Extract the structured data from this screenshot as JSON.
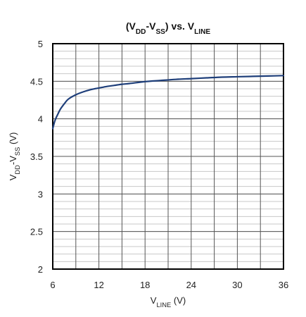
{
  "chart_data": {
    "type": "line",
    "title": {
      "parts": [
        {
          "text": "(V",
          "sub": false
        },
        {
          "text": "DD",
          "sub": true
        },
        {
          "text": "-V",
          "sub": false
        },
        {
          "text": "SS",
          "sub": true
        },
        {
          "text": ") vs. V",
          "sub": false
        },
        {
          "text": "LINE",
          "sub": true
        }
      ]
    },
    "xlabel": {
      "parts": [
        {
          "text": "V",
          "sub": false
        },
        {
          "text": "LINE",
          "sub": true
        },
        {
          "text": " (V)",
          "sub": false
        }
      ]
    },
    "ylabel": {
      "parts": [
        {
          "text": "V",
          "sub": false
        },
        {
          "text": "DD",
          "sub": true
        },
        {
          "text": "-V",
          "sub": false
        },
        {
          "text": "SS",
          "sub": true
        },
        {
          "text": " (V)",
          "sub": false
        }
      ]
    },
    "xlim": [
      6,
      36
    ],
    "ylim": [
      2,
      5
    ],
    "x_ticks": [
      "6",
      "12",
      "18",
      "24",
      "30",
      "36"
    ],
    "x_tick_values": [
      6,
      12,
      18,
      24,
      30,
      36
    ],
    "y_ticks": [
      "2",
      "2.5",
      "3",
      "3.5",
      "4",
      "4.5",
      "5"
    ],
    "y_tick_values": [
      2,
      2.5,
      3,
      3.5,
      4,
      4.5,
      5
    ],
    "grid": true,
    "line_color": "#1f3f7a",
    "series": [
      {
        "x": [
          6,
          6.3,
          6.7,
          7,
          7.5,
          8,
          9,
          10,
          11,
          12,
          13,
          14,
          15,
          16,
          18,
          20,
          22,
          24,
          26,
          28,
          30,
          32,
          34,
          36
        ],
        "y": [
          3.87,
          3.98,
          4.07,
          4.13,
          4.2,
          4.26,
          4.32,
          4.36,
          4.39,
          4.41,
          4.43,
          4.445,
          4.46,
          4.47,
          4.495,
          4.51,
          4.525,
          4.535,
          4.545,
          4.555,
          4.56,
          4.565,
          4.57,
          4.575
        ]
      }
    ]
  }
}
